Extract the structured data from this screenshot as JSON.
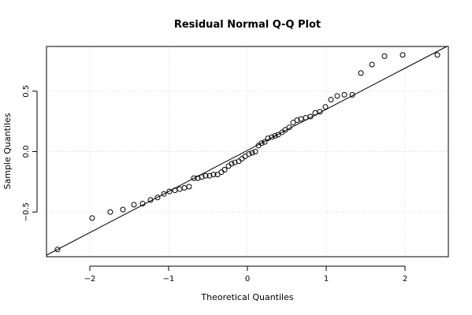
{
  "chart_data": {
    "type": "scatter",
    "title": "Residual Normal Q-Q Plot",
    "xlabel": "Theoretical Quantiles",
    "ylabel": "Sample Quantiles",
    "xlim": [
      -2.55,
      2.55
    ],
    "ylim": [
      -0.87,
      0.87
    ],
    "x_ticks": [
      -2,
      -1,
      0,
      1,
      2
    ],
    "x_tick_labels": [
      "−2",
      "−1",
      "0",
      "1",
      "2"
    ],
    "y_ticks": [
      -0.5,
      0.0,
      0.5
    ],
    "y_tick_labels": [
      "−0.5",
      "0.0",
      "0.5"
    ],
    "grid": true,
    "reference_line": {
      "slope": 0.34,
      "intercept": 0.01
    },
    "points": {
      "x": [
        -2.41,
        -1.97,
        -1.74,
        -1.58,
        -1.44,
        -1.33,
        -1.23,
        -1.14,
        -1.06,
        -0.99,
        -0.92,
        -0.86,
        -0.8,
        -0.74,
        -0.68,
        -0.63,
        -0.58,
        -0.53,
        -0.48,
        -0.43,
        -0.38,
        -0.33,
        -0.29,
        -0.24,
        -0.2,
        -0.16,
        -0.11,
        -0.07,
        -0.03,
        0.02,
        0.06,
        0.1,
        0.14,
        0.18,
        0.22,
        0.26,
        0.31,
        0.35,
        0.39,
        0.44,
        0.48,
        0.53,
        0.58,
        0.63,
        0.68,
        0.74,
        0.8,
        0.86,
        0.92,
        0.99,
        1.06,
        1.14,
        1.23,
        1.33,
        1.44,
        1.58,
        1.74,
        1.97,
        2.41
      ],
      "y": [
        -0.81,
        -0.55,
        -0.5,
        -0.48,
        -0.44,
        -0.43,
        -0.4,
        -0.38,
        -0.35,
        -0.33,
        -0.32,
        -0.31,
        -0.3,
        -0.29,
        -0.22,
        -0.22,
        -0.21,
        -0.2,
        -0.2,
        -0.19,
        -0.19,
        -0.17,
        -0.15,
        -0.12,
        -0.1,
        -0.09,
        -0.08,
        -0.06,
        -0.04,
        -0.02,
        -0.01,
        0.0,
        0.05,
        0.07,
        0.08,
        0.11,
        0.12,
        0.13,
        0.14,
        0.16,
        0.18,
        0.2,
        0.24,
        0.26,
        0.27,
        0.28,
        0.29,
        0.32,
        0.33,
        0.37,
        0.43,
        0.46,
        0.47,
        0.47,
        0.65,
        0.72,
        0.79,
        0.8,
        0.8
      ]
    },
    "colors": {
      "points": "#000000",
      "line": "#000000",
      "grid": "#d3d3d3"
    }
  }
}
